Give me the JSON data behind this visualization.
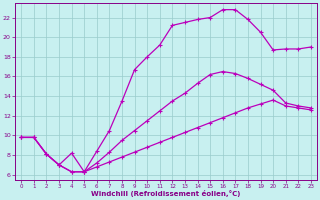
{
  "xlabel": "Windchill (Refroidissement éolien,°C)",
  "bg_color": "#c8f0f0",
  "line_color": "#bb00bb",
  "grid_color": "#99cccc",
  "axis_color": "#880088",
  "text_color": "#880088",
  "xlim": [
    -0.5,
    23.5
  ],
  "ylim": [
    5.5,
    23.5
  ],
  "xticks": [
    0,
    1,
    2,
    3,
    4,
    5,
    6,
    7,
    8,
    9,
    10,
    11,
    12,
    13,
    14,
    15,
    16,
    17,
    18,
    19,
    20,
    21,
    22,
    23
  ],
  "yticks": [
    6,
    8,
    10,
    12,
    14,
    16,
    18,
    20,
    22
  ],
  "line1_x": [
    0,
    1,
    2,
    3,
    4,
    5,
    6,
    7,
    8,
    9,
    10,
    11,
    12,
    13,
    14,
    15,
    16,
    17,
    18,
    19,
    20,
    21,
    22,
    23
  ],
  "line1_y": [
    9.8,
    9.8,
    8.1,
    7.0,
    8.2,
    6.3,
    8.4,
    10.5,
    13.5,
    16.7,
    18.0,
    19.2,
    21.2,
    21.5,
    21.8,
    22.0,
    22.8,
    22.8,
    21.8,
    20.5,
    18.7,
    18.8,
    18.8,
    19.0
  ],
  "line2_x": [
    0,
    1,
    2,
    3,
    4,
    5,
    6,
    7,
    8,
    9,
    10,
    11,
    12,
    13,
    14,
    15,
    16,
    17,
    18,
    19,
    20,
    21,
    22,
    23
  ],
  "line2_y": [
    9.8,
    9.8,
    8.1,
    7.0,
    6.3,
    6.3,
    7.2,
    8.3,
    9.5,
    10.5,
    11.5,
    12.5,
    13.5,
    14.3,
    15.3,
    16.2,
    16.5,
    16.3,
    15.8,
    15.2,
    14.6,
    13.3,
    13.0,
    12.8
  ],
  "line3_x": [
    0,
    1,
    2,
    3,
    4,
    5,
    6,
    7,
    8,
    9,
    10,
    11,
    12,
    13,
    14,
    15,
    16,
    17,
    18,
    19,
    20,
    21,
    22,
    23
  ],
  "line3_y": [
    9.8,
    9.8,
    8.1,
    7.0,
    6.3,
    6.3,
    6.8,
    7.3,
    7.8,
    8.3,
    8.8,
    9.3,
    9.8,
    10.3,
    10.8,
    11.3,
    11.8,
    12.3,
    12.8,
    13.2,
    13.6,
    13.0,
    12.8,
    12.6
  ]
}
